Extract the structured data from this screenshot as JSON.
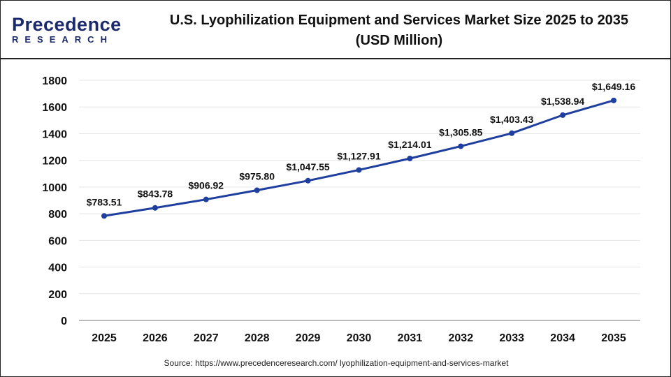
{
  "logo": {
    "main": "Precedence",
    "sub": "RESEARCH"
  },
  "title_line1": "U.S. Lyophilization Equipment and Services Market Size 2025 to 2035",
  "title_line2": "(USD Million)",
  "source": "Source: https://www.precedenceresearch.com/ lyophilization-equipment-and-services-market",
  "chart_data": {
    "type": "line",
    "title": "U.S. Lyophilization Equipment and Services Market Size 2025 to 2035 (USD Million)",
    "categories": [
      "2025",
      "2026",
      "2027",
      "2028",
      "2029",
      "2030",
      "2031",
      "2032",
      "2033",
      "2034",
      "2035"
    ],
    "values": [
      783.51,
      843.78,
      906.92,
      975.8,
      1047.55,
      1127.91,
      1214.01,
      1305.85,
      1403.43,
      1538.94,
      1649.16
    ],
    "labels": [
      "$783.51",
      "$843.78",
      "$906.92",
      "$975.80",
      "$1,047.55",
      "$1,127.91",
      "$1,214.01",
      "$1,305.85",
      "$1,403.43",
      "$1,538.94",
      "$1,649.16"
    ],
    "ylim": [
      0,
      1800
    ],
    "yticks": [
      "0",
      "200",
      "400",
      "600",
      "800",
      "1000",
      "1200",
      "1400",
      "1600",
      "1800"
    ],
    "grid": true,
    "line_color": "#1f3f9e"
  }
}
